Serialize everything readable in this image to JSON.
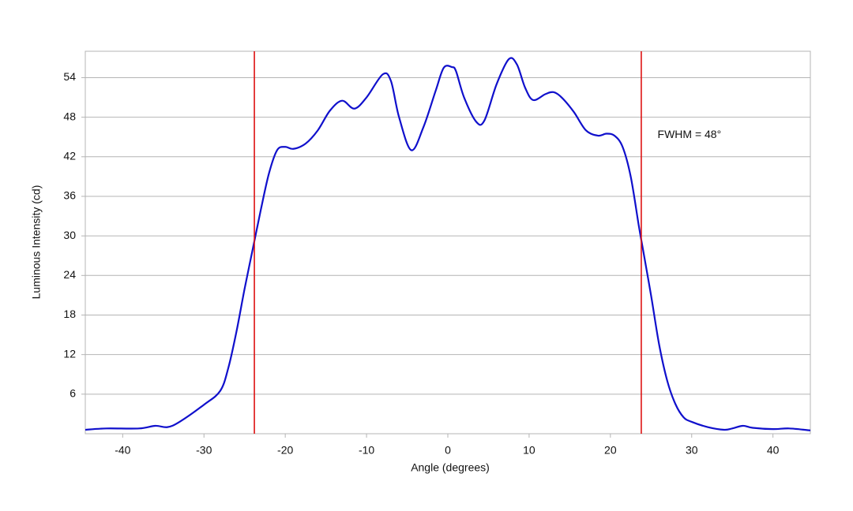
{
  "chart_data": {
    "type": "line",
    "x_label": "Angle (degrees)",
    "y_label": "Luminous Intensity (cd)",
    "annotation": "FWHM = 48°",
    "annotation_pos": [
      25.8,
      45.3
    ],
    "xlim": [
      -44.6,
      44.6
    ],
    "ylim": [
      0,
      58
    ],
    "xticks": [
      -40,
      -30,
      -20,
      -10,
      0,
      10,
      20,
      30,
      40
    ],
    "yticks": [
      6,
      12,
      18,
      24,
      30,
      36,
      42,
      48,
      54
    ],
    "grid": true,
    "vlines": [
      -23.8,
      23.8
    ],
    "vline_color": "#dd1111",
    "series": [
      {
        "color": "#1010cc",
        "x": [
          -44.6,
          -42,
          -38,
          -36,
          -34.5,
          -33,
          -30,
          -28,
          -27,
          -26,
          -25,
          -24,
          -23,
          -22,
          -21,
          -20,
          -19,
          -17.5,
          -16,
          -14.5,
          -13,
          -11.5,
          -10,
          -8,
          -7,
          -6,
          -4.5,
          -3,
          -1.5,
          -0.5,
          0.5,
          1,
          2,
          3.5,
          4.5,
          6,
          7.5,
          8.5,
          9.5,
          10.5,
          12,
          13,
          14,
          15.5,
          17,
          18.5,
          19.5,
          20.5,
          21.5,
          22.5,
          23.5,
          24,
          25,
          26,
          27,
          28,
          29,
          30,
          32,
          34,
          35,
          36.3,
          37.5,
          40,
          42,
          44.6
        ],
        "values": [
          0.6,
          0.8,
          0.8,
          1.2,
          1.0,
          1.8,
          4.4,
          6.5,
          10,
          15.5,
          22,
          28,
          34,
          39.5,
          43,
          43.5,
          43.2,
          44,
          46,
          49,
          50.5,
          49.3,
          51,
          54.5,
          53.5,
          48,
          43,
          46.5,
          52,
          55.5,
          55.6,
          55,
          51,
          47.3,
          47.5,
          53,
          56.8,
          56,
          52.5,
          50.6,
          51.5,
          51.8,
          51,
          48.8,
          46,
          45.2,
          45.5,
          45.2,
          43.5,
          39,
          31.5,
          28,
          21,
          13.5,
          8,
          4.5,
          2.5,
          1.8,
          1.0,
          0.6,
          0.8,
          1.2,
          0.9,
          0.7,
          0.8,
          0.5
        ]
      }
    ]
  }
}
